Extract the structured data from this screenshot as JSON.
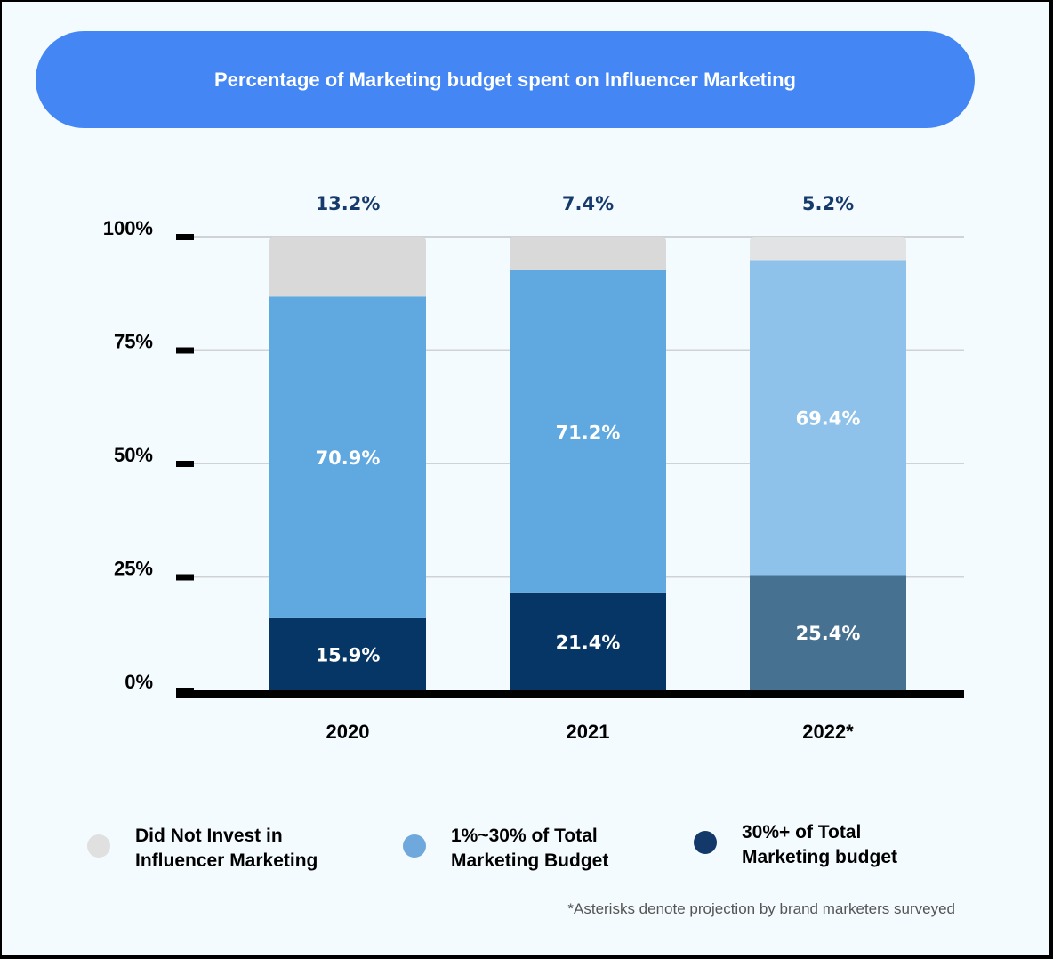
{
  "chart_data": {
    "type": "bar",
    "stacked": true,
    "title": "Percentage of Marketing budget spent on Influencer Marketing",
    "categories": [
      "2020",
      "2021",
      "2022*"
    ],
    "series": [
      {
        "name": "30%+ of Total Marketing budget",
        "values": [
          15.9,
          21.4,
          25.4
        ],
        "colors": [
          "#063665",
          "#063665",
          "#467190"
        ],
        "labels": [
          "15.9%",
          "21.4%",
          "25.4%"
        ]
      },
      {
        "name": "1%~30% of Total Marketing Budget",
        "values": [
          70.9,
          71.2,
          69.4
        ],
        "colors": [
          "#5fa8e0",
          "#5fa8e0",
          "#8ec2ea"
        ],
        "labels": [
          "70.9%",
          "71.2%",
          "69.4%"
        ]
      },
      {
        "name": "Did Not Invest in Influencer Marketing",
        "values": [
          13.2,
          7.4,
          5.2
        ],
        "colors": [
          "#d9d9d9",
          "#d9d9d9",
          "#e2e3e4"
        ],
        "labels": [
          "13.2%",
          "7.4%",
          "5.2%"
        ]
      }
    ],
    "yticks": [
      "0%",
      "25%",
      "50%",
      "75%",
      "100%"
    ],
    "ylim": [
      0,
      100
    ],
    "grid": true,
    "xlabel": "",
    "ylabel": "",
    "legend_position": "bottom"
  },
  "legend": [
    {
      "label": "Did Not Invest in\nInfluencer Marketing",
      "color": "#e0e0e0"
    },
    {
      "label": "1%~30% of Total\nMarketing Budget",
      "color": "#6ea8dd"
    },
    {
      "label": "30%+ of Total\nMarketing budget",
      "color": "#13386a"
    }
  ],
  "footnote": "*Asterisks denote projection by brand marketers surveyed"
}
